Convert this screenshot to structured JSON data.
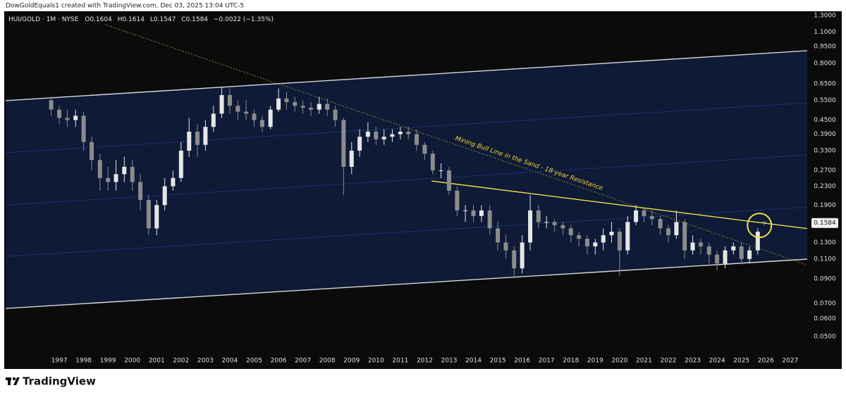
{
  "header": {
    "credit": "DowGoldEquals1 created with TradingView.com, Dec 03, 2025 13:04 UTC-5"
  },
  "footer": {
    "brand": "TradingView"
  },
  "chart_data": {
    "type": "candlestick",
    "symbol": "HUI/GOLD · 1M · NYSE",
    "ohlc_labels": [
      "O",
      "H",
      "L",
      "C"
    ],
    "change": "−0.0022 (−1.35%)",
    "log_scale": true,
    "grid": false,
    "up_color": "#e6e6e6",
    "down_color": "#8c8c8c",
    "x": [
      1996.67,
      1997.0,
      1997.33,
      1997.67,
      1998.0,
      1998.33,
      1998.67,
      1999.0,
      1999.33,
      1999.67,
      2000.0,
      2000.33,
      2000.67,
      2001.0,
      2001.33,
      2001.67,
      2002.0,
      2002.33,
      2002.67,
      2003.0,
      2003.33,
      2003.67,
      2004.0,
      2004.33,
      2004.67,
      2005.0,
      2005.33,
      2005.67,
      2006.0,
      2006.33,
      2006.67,
      2007.0,
      2007.33,
      2007.67,
      2008.0,
      2008.33,
      2008.67,
      2009.0,
      2009.33,
      2009.67,
      2010.0,
      2010.33,
      2010.67,
      2011.0,
      2011.33,
      2011.67,
      2012.0,
      2012.33,
      2012.67,
      2013.0,
      2013.33,
      2013.67,
      2014.0,
      2014.33,
      2014.67,
      2015.0,
      2015.33,
      2015.67,
      2016.0,
      2016.33,
      2016.67,
      2017.0,
      2017.33,
      2017.67,
      2018.0,
      2018.33,
      2018.67,
      2019.0,
      2019.33,
      2019.67,
      2020.0,
      2020.33,
      2020.67,
      2021.0,
      2021.33,
      2021.67,
      2022.0,
      2022.33,
      2022.67,
      2023.0,
      2023.33,
      2023.67,
      2024.0,
      2024.33,
      2024.67,
      2025.0,
      2025.33,
      2025.67,
      2025.92
    ],
    "open": [
      0.55,
      0.5,
      0.46,
      0.45,
      0.47,
      0.36,
      0.3,
      0.25,
      0.24,
      0.26,
      0.28,
      0.24,
      0.2,
      0.15,
      0.19,
      0.23,
      0.25,
      0.33,
      0.4,
      0.35,
      0.42,
      0.48,
      0.58,
      0.52,
      0.49,
      0.48,
      0.45,
      0.42,
      0.5,
      0.56,
      0.54,
      0.52,
      0.51,
      0.5,
      0.53,
      0.5,
      0.45,
      0.28,
      0.33,
      0.38,
      0.4,
      0.37,
      0.38,
      0.39,
      0.4,
      0.39,
      0.35,
      0.32,
      0.27,
      0.27,
      0.22,
      0.18,
      0.18,
      0.17,
      0.18,
      0.15,
      0.13,
      0.12,
      0.1,
      0.13,
      0.18,
      0.16,
      0.16,
      0.155,
      0.15,
      0.14,
      0.135,
      0.125,
      0.13,
      0.14,
      0.145,
      0.12,
      0.16,
      0.18,
      0.17,
      0.165,
      0.15,
      0.14,
      0.16,
      0.12,
      0.13,
      0.125,
      0.115,
      0.105,
      0.12,
      0.125,
      0.11,
      0.12,
      0.1604
    ],
    "high": [
      0.57,
      0.52,
      0.5,
      0.5,
      0.49,
      0.38,
      0.32,
      0.28,
      0.3,
      0.31,
      0.3,
      0.26,
      0.21,
      0.2,
      0.25,
      0.27,
      0.36,
      0.46,
      0.43,
      0.45,
      0.52,
      0.63,
      0.62,
      0.55,
      0.55,
      0.5,
      0.47,
      0.52,
      0.62,
      0.6,
      0.57,
      0.55,
      0.54,
      0.57,
      0.56,
      0.52,
      0.46,
      0.36,
      0.41,
      0.44,
      0.42,
      0.41,
      0.41,
      0.42,
      0.42,
      0.41,
      0.36,
      0.33,
      0.29,
      0.28,
      0.23,
      0.19,
      0.19,
      0.19,
      0.19,
      0.16,
      0.14,
      0.125,
      0.14,
      0.21,
      0.19,
      0.17,
      0.165,
      0.16,
      0.155,
      0.145,
      0.14,
      0.135,
      0.15,
      0.16,
      0.15,
      0.17,
      0.19,
      0.185,
      0.18,
      0.17,
      0.155,
      0.18,
      0.165,
      0.14,
      0.135,
      0.13,
      0.12,
      0.125,
      0.13,
      0.13,
      0.125,
      0.15,
      0.1614
    ],
    "low": [
      0.47,
      0.43,
      0.42,
      0.42,
      0.33,
      0.27,
      0.22,
      0.22,
      0.22,
      0.24,
      0.22,
      0.18,
      0.14,
      0.14,
      0.18,
      0.22,
      0.24,
      0.31,
      0.31,
      0.33,
      0.4,
      0.46,
      0.48,
      0.45,
      0.45,
      0.42,
      0.4,
      0.41,
      0.49,
      0.5,
      0.49,
      0.48,
      0.47,
      0.48,
      0.47,
      0.42,
      0.21,
      0.26,
      0.31,
      0.36,
      0.35,
      0.35,
      0.36,
      0.37,
      0.37,
      0.33,
      0.3,
      0.26,
      0.25,
      0.21,
      0.17,
      0.16,
      0.16,
      0.16,
      0.14,
      0.12,
      0.11,
      0.092,
      0.095,
      0.12,
      0.15,
      0.15,
      0.145,
      0.14,
      0.13,
      0.125,
      0.115,
      0.115,
      0.12,
      0.13,
      0.093,
      0.115,
      0.155,
      0.16,
      0.155,
      0.14,
      0.13,
      0.135,
      0.11,
      0.115,
      0.115,
      0.105,
      0.098,
      0.1,
      0.115,
      0.105,
      0.105,
      0.115,
      0.1547
    ],
    "close": [
      0.5,
      0.46,
      0.45,
      0.47,
      0.36,
      0.3,
      0.25,
      0.24,
      0.26,
      0.28,
      0.24,
      0.2,
      0.15,
      0.19,
      0.23,
      0.25,
      0.33,
      0.4,
      0.35,
      0.42,
      0.48,
      0.58,
      0.52,
      0.49,
      0.48,
      0.45,
      0.42,
      0.5,
      0.56,
      0.54,
      0.52,
      0.51,
      0.5,
      0.53,
      0.5,
      0.45,
      0.28,
      0.33,
      0.38,
      0.4,
      0.37,
      0.38,
      0.39,
      0.4,
      0.39,
      0.35,
      0.32,
      0.27,
      0.27,
      0.22,
      0.18,
      0.18,
      0.17,
      0.18,
      0.15,
      0.13,
      0.12,
      0.1,
      0.13,
      0.18,
      0.16,
      0.16,
      0.155,
      0.15,
      0.14,
      0.135,
      0.125,
      0.13,
      0.14,
      0.145,
      0.12,
      0.16,
      0.18,
      0.17,
      0.165,
      0.15,
      0.14,
      0.16,
      0.12,
      0.13,
      0.125,
      0.115,
      0.105,
      0.12,
      0.125,
      0.11,
      0.12,
      0.145,
      0.1584
    ],
    "xlim": [
      1994.8,
      2027.7
    ],
    "xticks": [
      1997,
      1998,
      1999,
      2000,
      2001,
      2002,
      2003,
      2004,
      2005,
      2006,
      2007,
      2008,
      2009,
      2010,
      2011,
      2012,
      2013,
      2014,
      2015,
      2016,
      2017,
      2018,
      2019,
      2020,
      2021,
      2022,
      2023,
      2024,
      2025,
      2026,
      2027
    ],
    "ylim": [
      0.0428,
      1.436
    ],
    "yticks": [
      {
        "value": 1.3,
        "label": "1.3000"
      },
      {
        "value": 1.1,
        "label": "1.1000"
      },
      {
        "value": 0.95,
        "label": "0.9500"
      },
      {
        "value": 0.8,
        "label": "0.8000"
      },
      {
        "value": 0.65,
        "label": "0.6500"
      },
      {
        "value": 0.55,
        "label": "0.5500"
      },
      {
        "value": 0.45,
        "label": "0.4500"
      },
      {
        "value": 0.39,
        "label": "0.3900"
      },
      {
        "value": 0.33,
        "label": "0.3300"
      },
      {
        "value": 0.27,
        "label": "0.2700"
      },
      {
        "value": 0.23,
        "label": "0.2300"
      },
      {
        "value": 0.19,
        "label": "0.1900"
      },
      {
        "value": 0.13,
        "label": "0.1300"
      },
      {
        "value": 0.11,
        "label": "0.1100"
      },
      {
        "value": 0.09,
        "label": "0.0900"
      },
      {
        "value": 0.07,
        "label": "0.0700"
      },
      {
        "value": 0.06,
        "label": "0.0600"
      },
      {
        "value": 0.05,
        "label": "0.0500"
      }
    ],
    "channel_fill": "#0e1a36",
    "drawings": [
      {
        "color": "#d9d9d9",
        "style": "solid",
        "points": [
          [
            1994.8,
            0.548
          ],
          [
            2027.7,
            0.909
          ]
        ]
      },
      {
        "color": "#d9d9d9",
        "style": "solid",
        "points": [
          [
            1994.8,
            0.0666
          ],
          [
            2027.7,
            0.1098
          ]
        ]
      },
      {
        "color": "#2f56c8",
        "style": "dotted",
        "points": [
          [
            1994.8,
            0.323
          ],
          [
            2027.7,
            0.536
          ]
        ]
      },
      {
        "color": "#2f56c8",
        "style": "dotted",
        "points": [
          [
            1994.8,
            0.19
          ],
          [
            2027.7,
            0.316
          ]
        ]
      },
      {
        "color": "#2f56c8",
        "style": "dotted",
        "points": [
          [
            1994.8,
            0.113
          ],
          [
            2027.7,
            0.186
          ]
        ]
      },
      {
        "color": "#b8a030",
        "style": "dotted",
        "points": [
          [
            1998.9,
            1.184
          ],
          [
            2027.7,
            0.1036
          ]
        ]
      },
      {
        "color": "#f2e04a",
        "style": "solid",
        "points": [
          [
            2012.28,
            0.2425
          ],
          [
            2027.85,
            0.149
          ]
        ]
      }
    ],
    "annotations": [
      {
        "text": "Mining Bull Line in the Sand - 18-year Resistance",
        "color": "#f2d43a",
        "at": [
          2016.28,
          0.29
        ]
      }
    ],
    "highlight": {
      "at": [
        2025.74,
        0.1546
      ],
      "color": "#f2e04a"
    }
  }
}
